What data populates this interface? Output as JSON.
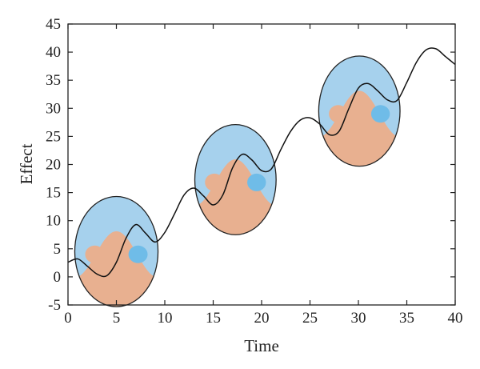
{
  "chart_data": {
    "type": "line",
    "title": "",
    "xlabel": "Time",
    "ylabel": "Effect",
    "xlim": [
      0,
      40
    ],
    "ylim": [
      -5,
      45
    ],
    "xticks": [
      0,
      5,
      10,
      15,
      20,
      25,
      30,
      35,
      40
    ],
    "yticks": [
      -5,
      0,
      5,
      10,
      15,
      20,
      25,
      30,
      35,
      40,
      45
    ],
    "xtick_labels": [
      "0",
      "5",
      "10",
      "15",
      "20",
      "25",
      "30",
      "35",
      "40"
    ],
    "ytick_labels": [
      "-5",
      "0",
      "5",
      "10",
      "15",
      "20",
      "25",
      "30",
      "35",
      "40",
      "45"
    ],
    "grid": false,
    "series": [
      {
        "color": "#111111",
        "x": [
          0,
          1,
          2,
          3,
          4,
          5,
          6,
          7,
          8,
          9,
          10,
          11,
          12,
          13,
          14,
          15,
          16,
          17,
          18,
          19,
          20,
          21,
          22,
          23,
          24,
          25,
          26,
          27,
          28,
          29,
          30,
          31,
          32,
          33,
          34,
          35,
          36,
          37,
          38,
          39,
          40
        ],
        "values": [
          2.6,
          3.2,
          1.9,
          0.5,
          0.2,
          2.6,
          6.9,
          9.3,
          7.8,
          6.2,
          7.9,
          11.2,
          14.6,
          15.8,
          14.4,
          12.8,
          14.6,
          19.4,
          21.8,
          20.8,
          18.9,
          19.2,
          22.7,
          25.9,
          27.9,
          28.3,
          27.2,
          25.3,
          25.9,
          29.9,
          33.6,
          34.4,
          33.1,
          31.5,
          31.4,
          34.6,
          38.2,
          40.4,
          40.6,
          39.2,
          37.8
        ]
      }
    ],
    "symbols": [
      {
        "cx": 5,
        "cy": 4.5,
        "rx": 4.3,
        "ry": 9.8,
        "top_color": "#a6d1ed",
        "bottom_color": "#e8b090",
        "top_dot_color": "#e8b090",
        "bottom_dot_color": "#6fbce8"
      },
      {
        "cx": 17.3,
        "cy": 17.3,
        "rx": 4.2,
        "ry": 9.8,
        "top_color": "#a6d1ed",
        "bottom_color": "#e8b090",
        "top_dot_color": "#e8b090",
        "bottom_dot_color": "#6fbce8"
      },
      {
        "cx": 30.1,
        "cy": 29.5,
        "rx": 4.2,
        "ry": 9.8,
        "top_color": "#a6d1ed",
        "bottom_color": "#e8b090",
        "top_dot_color": "#e8b090",
        "bottom_dot_color": "#6fbce8"
      }
    ]
  }
}
